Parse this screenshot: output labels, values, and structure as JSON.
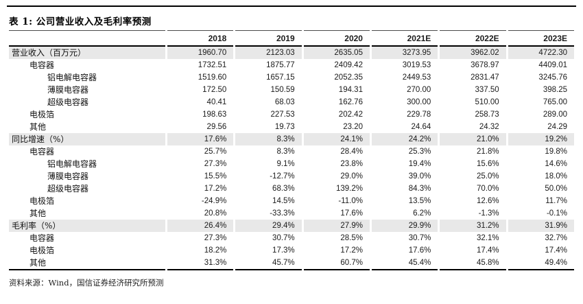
{
  "table": {
    "title": "表 1: 公司营业收入及毛利率预测",
    "columns": [
      "2018",
      "2019",
      "2020",
      "2021E",
      "2022E",
      "2023E"
    ],
    "rows": [
      {
        "label": "营业收入（百万元）",
        "indent": 0,
        "section": true,
        "values": [
          "1960.70",
          "2123.03",
          "2635.05",
          "3273.95",
          "3962.02",
          "4722.30"
        ]
      },
      {
        "label": "电容器",
        "indent": 1,
        "section": false,
        "values": [
          "1732.51",
          "1875.77",
          "2409.42",
          "3019.53",
          "3678.97",
          "4409.01"
        ]
      },
      {
        "label": "铝电解电容器",
        "indent": 2,
        "section": false,
        "values": [
          "1519.60",
          "1657.15",
          "2052.35",
          "2449.53",
          "2831.47",
          "3245.76"
        ]
      },
      {
        "label": "薄膜电容器",
        "indent": 2,
        "section": false,
        "values": [
          "172.50",
          "150.59",
          "194.31",
          "270.00",
          "337.50",
          "398.25"
        ]
      },
      {
        "label": "超级电容器",
        "indent": 2,
        "section": false,
        "values": [
          "40.41",
          "68.03",
          "162.76",
          "300.00",
          "510.00",
          "765.00"
        ]
      },
      {
        "label": "电极箔",
        "indent": 1,
        "section": false,
        "values": [
          "198.63",
          "227.53",
          "202.42",
          "229.78",
          "258.73",
          "289.00"
        ]
      },
      {
        "label": "其他",
        "indent": 1,
        "section": false,
        "values": [
          "29.56",
          "19.73",
          "23.20",
          "24.64",
          "24.32",
          "24.29"
        ]
      },
      {
        "label": "同比增速（%）",
        "indent": 0,
        "section": true,
        "values": [
          "17.6%",
          "8.3%",
          "24.1%",
          "24.2%",
          "21.0%",
          "19.2%"
        ]
      },
      {
        "label": "电容器",
        "indent": 1,
        "section": false,
        "values": [
          "25.7%",
          "8.3%",
          "28.4%",
          "25.3%",
          "21.8%",
          "19.8%"
        ]
      },
      {
        "label": "铝电解电容器",
        "indent": 2,
        "section": false,
        "values": [
          "27.3%",
          "9.1%",
          "23.8%",
          "19.4%",
          "15.6%",
          "14.6%"
        ]
      },
      {
        "label": "薄膜电容器",
        "indent": 2,
        "section": false,
        "values": [
          "15.5%",
          "-12.7%",
          "29.0%",
          "39.0%",
          "25.0%",
          "18.0%"
        ]
      },
      {
        "label": "超级电容器",
        "indent": 2,
        "section": false,
        "values": [
          "17.2%",
          "68.3%",
          "139.2%",
          "84.3%",
          "70.0%",
          "50.0%"
        ]
      },
      {
        "label": "电极箔",
        "indent": 1,
        "section": false,
        "values": [
          "-24.9%",
          "14.5%",
          "-11.0%",
          "13.5%",
          "12.6%",
          "11.7%"
        ]
      },
      {
        "label": "其他",
        "indent": 1,
        "section": false,
        "values": [
          "20.8%",
          "-33.3%",
          "17.6%",
          "6.2%",
          "-1.3%",
          "-0.1%"
        ]
      },
      {
        "label": "毛利率（%）",
        "indent": 0,
        "section": true,
        "values": [
          "26.4%",
          "29.4%",
          "27.9%",
          "29.9%",
          "31.2%",
          "31.9%"
        ]
      },
      {
        "label": "电容器",
        "indent": 1,
        "section": false,
        "values": [
          "27.3%",
          "30.7%",
          "28.5%",
          "30.7%",
          "32.1%",
          "32.7%"
        ]
      },
      {
        "label": "电极箔",
        "indent": 1,
        "section": false,
        "values": [
          "18.2%",
          "17.3%",
          "17.2%",
          "17.6%",
          "17.4%",
          "17.4%"
        ]
      },
      {
        "label": "其他",
        "indent": 1,
        "section": false,
        "values": [
          "31.3%",
          "45.7%",
          "60.7%",
          "45.4%",
          "45.8%",
          "49.4%"
        ]
      }
    ],
    "source": "资料来源：Wind，国信证券经济研究所预测"
  },
  "colors": {
    "section_row_bg": "#e8e8e8",
    "rule_color": "#000000",
    "text_color": "#1a1a1a"
  }
}
